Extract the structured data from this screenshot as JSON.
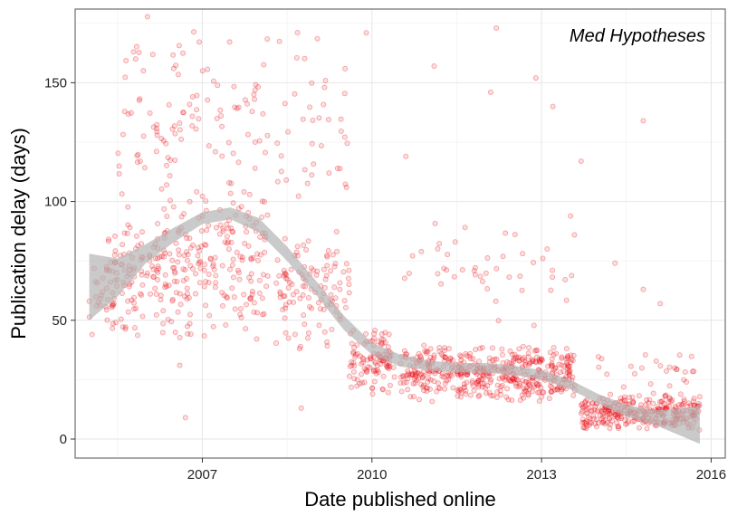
{
  "chart_data": {
    "type": "scatter",
    "title": "",
    "annotation": "Med Hypotheses",
    "xlabel": "Date published online",
    "ylabel": "Publication delay (days)",
    "xlim": [
      2004.75,
      2016.25
    ],
    "ylim": [
      -8,
      181
    ],
    "x_ticks": [
      2007,
      2010,
      2013,
      2016
    ],
    "x_tick_labels": [
      "2007",
      "2010",
      "2013",
      "2016"
    ],
    "y_ticks": [
      0,
      50,
      100,
      150
    ],
    "y_tick_labels": [
      "0",
      "50",
      "100",
      "150"
    ],
    "grid": true,
    "point_color": "#e8000b",
    "ribbon_color": "#b3b3b3",
    "clusters": [
      {
        "x_range": [
          2005.0,
          2005.5
        ],
        "y_range": [
          40,
          80
        ],
        "count": 25
      },
      {
        "x_range": [
          2005.3,
          2006.6
        ],
        "y_range": [
          40,
          100
        ],
        "count": 140
      },
      {
        "x_range": [
          2005.5,
          2006.6
        ],
        "y_range": [
          80,
          180
        ],
        "count": 55
      },
      {
        "x_range": [
          2006.6,
          2008.2
        ],
        "y_range": [
          40,
          110
        ],
        "count": 170
      },
      {
        "x_range": [
          2006.6,
          2008.2
        ],
        "y_range": [
          100,
          180
        ],
        "count": 55
      },
      {
        "x_range": [
          2008.3,
          2009.6
        ],
        "y_range": [
          35,
          90
        ],
        "count": 110
      },
      {
        "x_range": [
          2008.3,
          2009.6
        ],
        "y_range": [
          90,
          180
        ],
        "count": 40
      },
      {
        "x_range": [
          2009.6,
          2010.4
        ],
        "y_range": [
          18,
          48
        ],
        "count": 110
      },
      {
        "x_range": [
          2010.5,
          2013.6
        ],
        "y_range": [
          15,
          40
        ],
        "count": 480
      },
      {
        "x_range": [
          2010.5,
          2013.6
        ],
        "y_range": [
          40,
          100
        ],
        "count": 45
      },
      {
        "x_range": [
          2013.7,
          2015.8
        ],
        "y_range": [
          3,
          20
        ],
        "count": 300
      },
      {
        "x_range": [
          2014.0,
          2015.8
        ],
        "y_range": [
          20,
          40
        ],
        "count": 25
      }
    ],
    "outliers": [
      {
        "x": 2005.0,
        "y": 58
      },
      {
        "x": 2005.05,
        "y": 44
      },
      {
        "x": 2006.6,
        "y": 31
      },
      {
        "x": 2006.7,
        "y": 9
      },
      {
        "x": 2008.75,
        "y": 13
      },
      {
        "x": 2012.9,
        "y": 152
      },
      {
        "x": 2013.2,
        "y": 140
      },
      {
        "x": 2014.8,
        "y": 134
      },
      {
        "x": 2014.3,
        "y": 74
      },
      {
        "x": 2015.1,
        "y": 57
      },
      {
        "x": 2013.7,
        "y": 117
      },
      {
        "x": 2012.2,
        "y": 173
      },
      {
        "x": 2011.1,
        "y": 157
      },
      {
        "x": 2012.1,
        "y": 146
      },
      {
        "x": 2009.9,
        "y": 171
      },
      {
        "x": 2010.6,
        "y": 119
      },
      {
        "x": 2013.1,
        "y": 80
      },
      {
        "x": 2014.8,
        "y": 63
      }
    ],
    "smooth": {
      "x": [
        2005.0,
        2005.5,
        2006.0,
        2006.5,
        2007.0,
        2007.5,
        2008.0,
        2008.5,
        2009.0,
        2009.5,
        2010.0,
        2010.5,
        2011.0,
        2011.5,
        2012.0,
        2012.5,
        2013.0,
        2013.5,
        2014.0,
        2014.5,
        2015.0,
        2015.5,
        2015.8
      ],
      "y": [
        64,
        68,
        78,
        86,
        93,
        95,
        90,
        78,
        64,
        49,
        38,
        33,
        31,
        30,
        30,
        29,
        27,
        23,
        17,
        12,
        9,
        7,
        6
      ],
      "half_width": [
        14,
        8,
        4,
        3,
        2.5,
        2.5,
        3,
        3,
        3,
        3,
        2.5,
        2.5,
        2,
        2,
        2,
        2,
        2,
        2,
        2,
        2.5,
        3,
        6,
        8
      ]
    }
  }
}
